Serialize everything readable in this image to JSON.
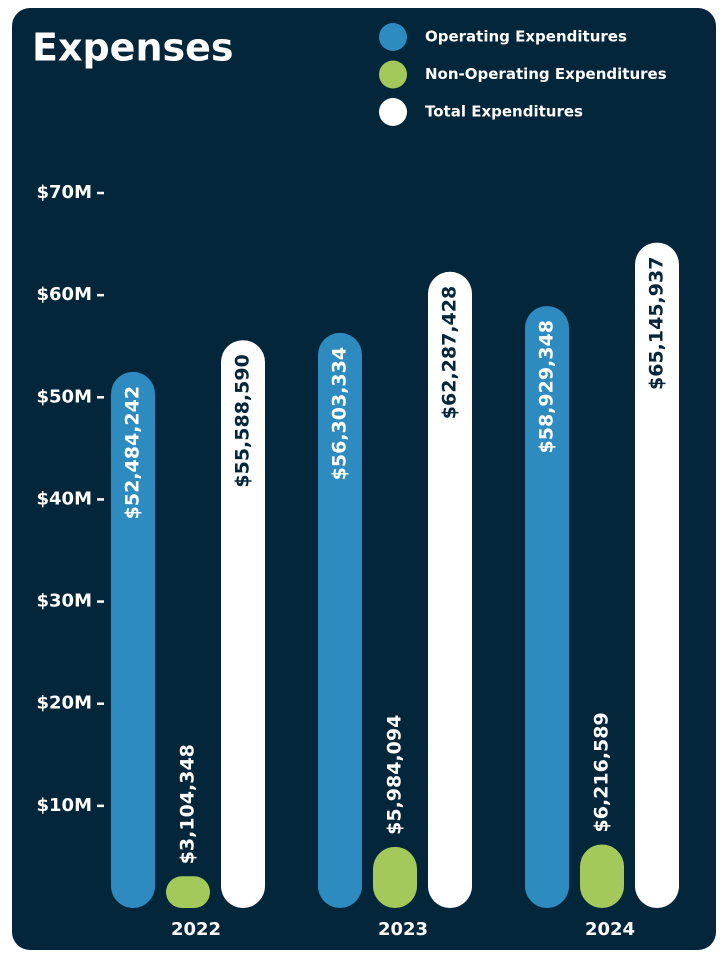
{
  "chart_data": {
    "type": "bar",
    "title": "Expenses",
    "categories": [
      "2022",
      "2023",
      "2024"
    ],
    "series": [
      {
        "name": "Operating Expenditures",
        "color": "#2e8bc0",
        "values": [
          52484242,
          56303334,
          58929348
        ],
        "value_labels": [
          "$52,484,242",
          "$56,303,334",
          "$58,929,348"
        ]
      },
      {
        "name": "Non-Operating Expenditures",
        "color": "#a3c95a",
        "values": [
          3104348,
          5984094,
          6216589
        ],
        "value_labels": [
          "$3,104,348",
          "$5,984,094",
          "$6,216,589"
        ]
      },
      {
        "name": "Total Expenditures",
        "color": "#ffffff",
        "values": [
          55588590,
          62287428,
          65145937
        ],
        "value_labels": [
          "$55,588,590",
          "$62,287,428",
          "$65,145,937"
        ]
      }
    ],
    "ylim": [
      0,
      70000000
    ],
    "yticks": [
      {
        "value": 10000000,
        "label": "$10M"
      },
      {
        "value": 20000000,
        "label": "$20M"
      },
      {
        "value": 30000000,
        "label": "$30M"
      },
      {
        "value": 40000000,
        "label": "$40M"
      },
      {
        "value": 50000000,
        "label": "$50M"
      },
      {
        "value": 60000000,
        "label": "$60M"
      },
      {
        "value": 70000000,
        "label": "$70M"
      }
    ],
    "legend": "top-right"
  }
}
